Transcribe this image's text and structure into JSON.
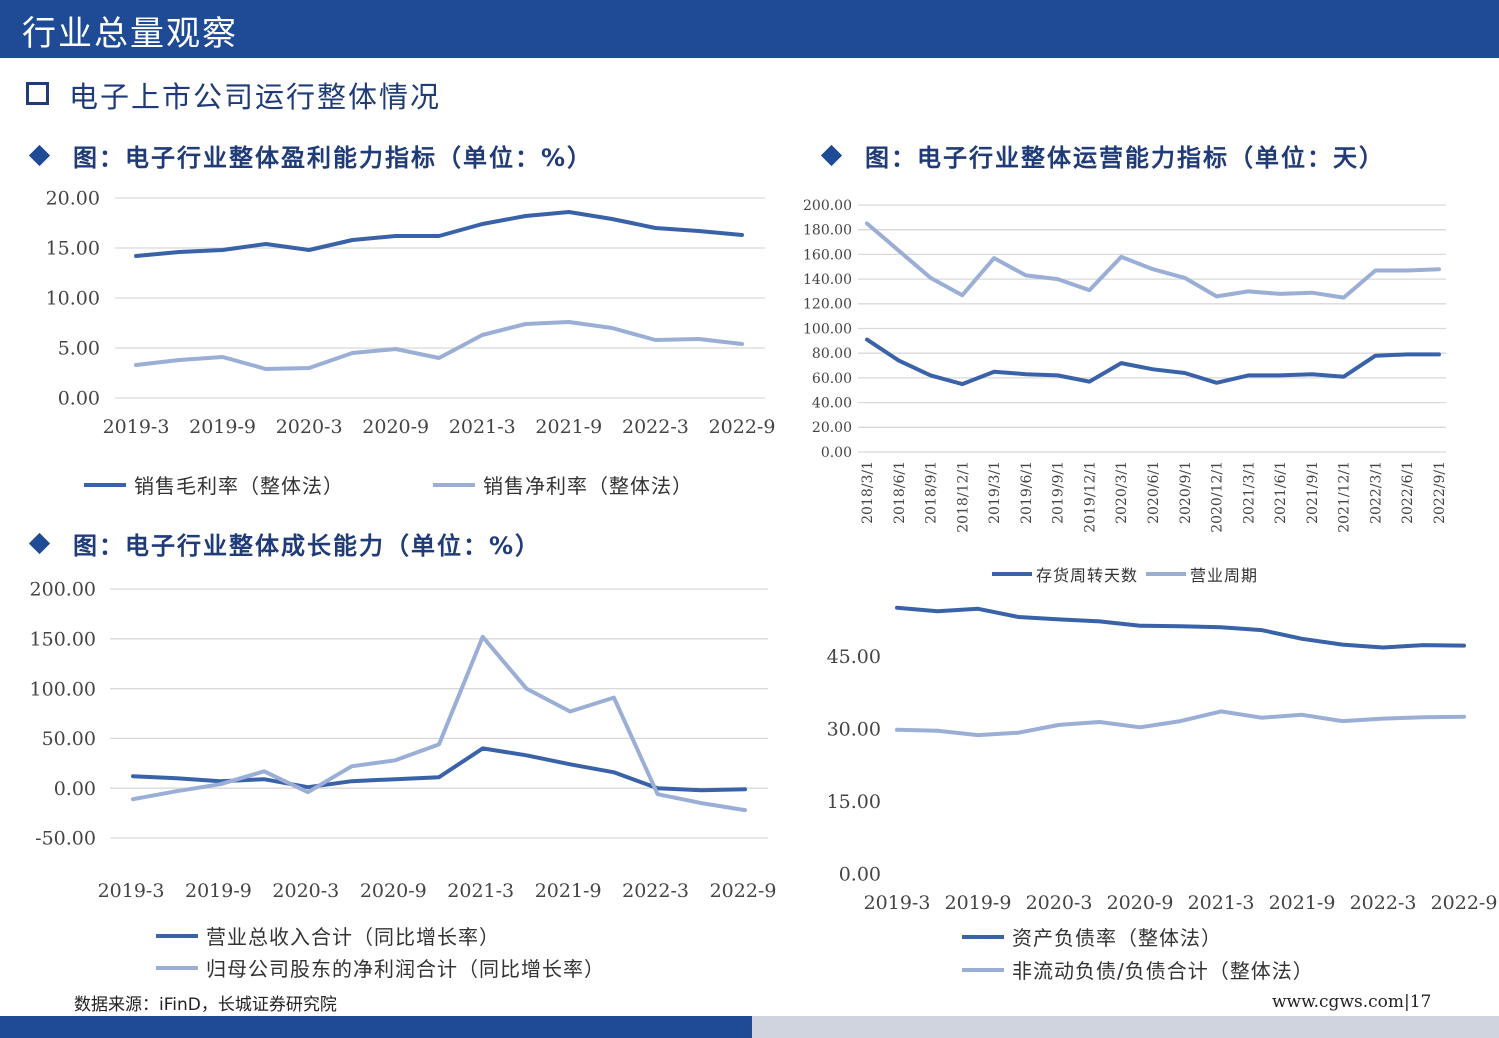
{
  "header": {
    "title": "行业总量观察"
  },
  "section": {
    "title": "电子上市公司运行整体情况"
  },
  "source_text": "数据来源：iFinD，长城证券研究院",
  "site_text": "www.cgws.com|17",
  "colors": {
    "dark": "#3a62a8",
    "light": "#9aaed6",
    "brand": "#1f4a96"
  },
  "chart_data": [
    {
      "id": "profit",
      "type": "line",
      "title": "图：电子行业整体盈利能力指标（单位：%）",
      "categories": [
        "2019-3",
        "2019-6",
        "2019-9",
        "2019-12",
        "2020-3",
        "2020-6",
        "2020-9",
        "2020-12",
        "2021-3",
        "2021-6",
        "2021-9",
        "2021-12",
        "2022-3",
        "2022-6",
        "2022-9"
      ],
      "x_tick_labels": [
        "2019-3",
        "2019-9",
        "2020-3",
        "2020-9",
        "2021-3",
        "2021-9",
        "2022-3",
        "2022-9"
      ],
      "y_tick_labels": [
        "20.00",
        "15.00",
        "10.00",
        "5.00",
        "0.00"
      ],
      "ylim": [
        0,
        20
      ],
      "series": [
        {
          "name": "销售毛利率（整体法）",
          "values": [
            14.2,
            14.6,
            14.8,
            15.4,
            14.8,
            15.8,
            16.2,
            16.2,
            17.4,
            18.2,
            18.6,
            17.9,
            17.0,
            16.7,
            16.3
          ]
        },
        {
          "name": "销售净利率（整体法）",
          "values": [
            3.3,
            3.8,
            4.1,
            2.9,
            3.0,
            4.5,
            4.9,
            4.0,
            6.3,
            7.4,
            7.6,
            7.0,
            5.8,
            5.9,
            5.4
          ]
        }
      ]
    },
    {
      "id": "operation",
      "type": "line",
      "title": "图：电子行业整体运营能力指标（单位：天）",
      "categories": [
        "2018/3/1",
        "2018/6/1",
        "2018/9/1",
        "2018/12/1",
        "2019/3/1",
        "2019/6/1",
        "2019/9/1",
        "2019/12/1",
        "2020/3/1",
        "2020/6/1",
        "2020/9/1",
        "2020/12/1",
        "2021/3/1",
        "2021/6/1",
        "2021/9/1",
        "2021/12/1",
        "2022/3/1",
        "2022/6/1",
        "2022/9/1"
      ],
      "y_tick_labels": [
        "200.00",
        "180.00",
        "160.00",
        "140.00",
        "120.00",
        "100.00",
        "80.00",
        "60.00",
        "40.00",
        "20.00",
        "0.00"
      ],
      "ylim": [
        0,
        200
      ],
      "series": [
        {
          "name": "存货周转天数",
          "values": [
            91,
            74,
            62,
            55,
            65,
            63,
            62,
            57,
            72,
            67,
            64,
            56,
            62,
            62,
            63,
            61,
            78,
            79,
            79
          ]
        },
        {
          "name": "营业周期",
          "values": [
            185,
            163,
            141,
            127,
            157,
            143,
            140,
            131,
            158,
            148,
            141,
            126,
            130,
            128,
            129,
            125,
            147,
            147,
            148
          ]
        }
      ]
    },
    {
      "id": "growth",
      "type": "line",
      "title": "图：电子行业整体成长能力（单位：%）",
      "categories": [
        "2019-3",
        "2019-6",
        "2019-9",
        "2019-12",
        "2020-3",
        "2020-6",
        "2020-9",
        "2020-12",
        "2021-3",
        "2021-6",
        "2021-9",
        "2021-12",
        "2022-3",
        "2022-6",
        "2022-9"
      ],
      "x_tick_labels": [
        "2019-3",
        "2019-9",
        "2020-3",
        "2020-9",
        "2021-3",
        "2021-9",
        "2022-3",
        "2022-9"
      ],
      "y_tick_labels": [
        "200.00",
        "150.00",
        "100.00",
        "50.00",
        "0.00",
        "-50.00"
      ],
      "ylim": [
        -50,
        200
      ],
      "series": [
        {
          "name": "营业总收入合计（同比增长率）",
          "values": [
            12,
            10,
            7,
            9,
            1,
            7,
            9,
            11,
            40,
            33,
            24,
            16,
            0,
            -2,
            -1
          ]
        },
        {
          "name": "归母公司股东的净利润合计（同比增长率）",
          "values": [
            -11,
            -3,
            4,
            17,
            -4,
            22,
            28,
            44,
            152,
            100,
            77,
            91,
            -6,
            -15,
            -22
          ]
        }
      ]
    },
    {
      "id": "debt",
      "type": "line",
      "title": "",
      "categories": [
        "2019-3",
        "2019-6",
        "2019-9",
        "2019-12",
        "2020-3",
        "2020-6",
        "2020-9",
        "2020-12",
        "2021-3",
        "2021-6",
        "2021-9",
        "2021-12",
        "2022-3",
        "2022-6",
        "2022-9"
      ],
      "x_tick_labels": [
        "2019-3",
        "2019-9",
        "2020-3",
        "2020-9",
        "2021-3",
        "2021-9",
        "2022-3",
        "2022-9"
      ],
      "y_tick_labels": [
        "45.00",
        "30.00",
        "15.00",
        "0.00"
      ],
      "ylim": [
        0,
        55
      ],
      "series": [
        {
          "name": "资产负债率（整体法）",
          "values": [
            55,
            54.3,
            54.8,
            53.1,
            52.6,
            52.2,
            51.3,
            51.2,
            51.0,
            50.4,
            48.6,
            47.4,
            46.8,
            47.3,
            47.2
          ]
        },
        {
          "name": "非流动负债/负债合计（整体法）",
          "values": [
            29.8,
            29.6,
            28.7,
            29.2,
            30.8,
            31.4,
            30.3,
            31.6,
            33.6,
            32.3,
            32.9,
            31.6,
            32.1,
            32.4,
            32.5
          ]
        }
      ]
    }
  ]
}
